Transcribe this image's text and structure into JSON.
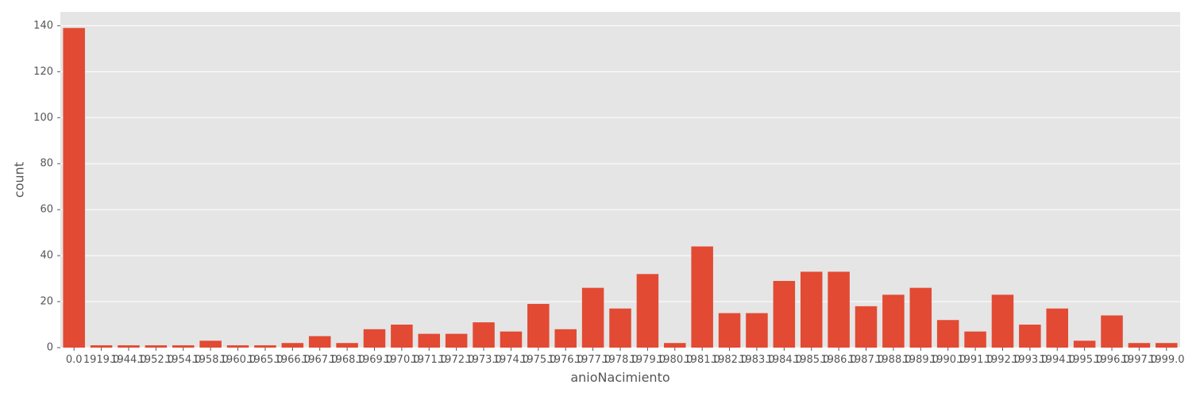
{
  "chart_data": {
    "type": "bar",
    "xlabel": "anioNacimiento",
    "ylabel": "count",
    "ylim": [
      0,
      146
    ],
    "yticks": [
      0,
      20,
      40,
      60,
      80,
      100,
      120,
      140
    ],
    "grid": true,
    "bar_color": "#E24A33",
    "background_color": "#E5E5E5",
    "grid_color": "#FFFFFF",
    "categories": [
      "0.0",
      "1919.0",
      "1944.0",
      "1952.0",
      "1954.0",
      "1958.0",
      "1960.0",
      "1965.0",
      "1966.0",
      "1967.0",
      "1968.0",
      "1969.0",
      "1970.0",
      "1971.0",
      "1972.0",
      "1973.0",
      "1974.0",
      "1975.0",
      "1976.0",
      "1977.0",
      "1978.0",
      "1979.0",
      "1980.0",
      "1981.0",
      "1982.0",
      "1983.0",
      "1984.0",
      "1985.0",
      "1986.0",
      "1987.0",
      "1988.0",
      "1989.0",
      "1990.0",
      "1991.0",
      "1992.0",
      "1993.0",
      "1994.0",
      "1995.0",
      "1996.0",
      "1997.0",
      "1999.0"
    ],
    "values": [
      139,
      1,
      1,
      1,
      1,
      3,
      1,
      1,
      2,
      5,
      2,
      8,
      10,
      6,
      6,
      11,
      7,
      19,
      8,
      26,
      17,
      32,
      2,
      44,
      15,
      15,
      29,
      33,
      33,
      18,
      23,
      26,
      12,
      7,
      23,
      10,
      17,
      3,
      14,
      2,
      2
    ]
  }
}
